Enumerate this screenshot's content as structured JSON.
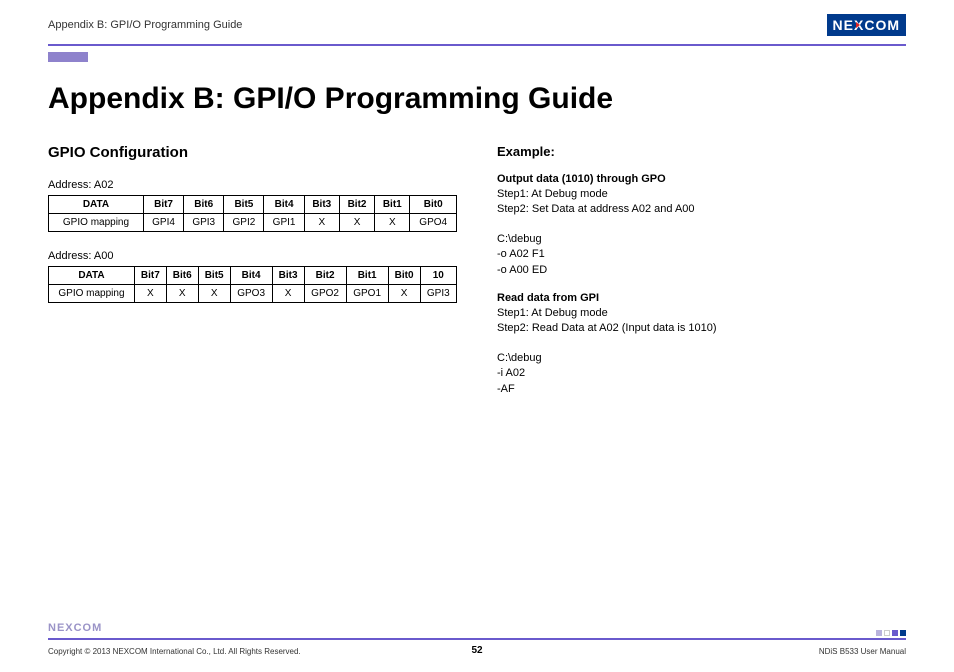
{
  "header": {
    "breadcrumb": "Appendix B: GPI/O Programming Guide",
    "logo_text_1": "NE",
    "logo_text_x": "X",
    "logo_text_2": "COM"
  },
  "title": "Appendix B: GPI/O Programming Guide",
  "left": {
    "heading": "GPIO Configuration",
    "table1": {
      "address": "Address: A02",
      "headers": [
        "DATA",
        "Bit7",
        "Bit6",
        "Bit5",
        "Bit4",
        "Bit3",
        "Bit2",
        "Bit1",
        "Bit0"
      ],
      "row_label": "GPIO mapping",
      "row": [
        "GPI4",
        "GPI3",
        "GPI2",
        "GPI1",
        "X",
        "X",
        "X",
        "GPO4"
      ]
    },
    "table2": {
      "address": "Address: A00",
      "headers": [
        "DATA",
        "Bit7",
        "Bit6",
        "Bit5",
        "Bit4",
        "Bit3",
        "Bit2",
        "Bit1",
        "Bit0",
        "10"
      ],
      "row_label": "GPIO mapping",
      "row": [
        "X",
        "X",
        "X",
        "GPO3",
        "X",
        "GPO2",
        "GPO1",
        "X",
        "GPI3"
      ]
    }
  },
  "right": {
    "heading": "Example:",
    "output": {
      "title": "Output data (1010) through GPO",
      "step1": "Step1: At Debug mode",
      "step2": "Step2: Set Data at address A02 and A00"
    },
    "cmds1": {
      "l1": "C:\\debug",
      "l2": "-o A02 F1",
      "l3": "-o A00 ED"
    },
    "read": {
      "title": "Read data from GPI",
      "step1": "Step1: At Debug mode",
      "step2": "Step2: Read Data at A02 (Input data is 1010)"
    },
    "cmds2": {
      "l1": "C:\\debug",
      "l2": "-i A02",
      "l3": "-AF"
    }
  },
  "footer": {
    "logo": "NEXCOM",
    "copyright": "Copyright © 2013 NEXCOM International Co., Ltd. All Rights Reserved.",
    "page": "52",
    "manual": "NDiS B533 User Manual",
    "deco_colors": [
      "#b9b3dd",
      "#ffffff",
      "#6a5acd",
      "#003a8c"
    ]
  },
  "colors": {
    "accent": "#6a5acd",
    "sidebar": "#8e82cc",
    "logo_bg": "#003a8c"
  }
}
